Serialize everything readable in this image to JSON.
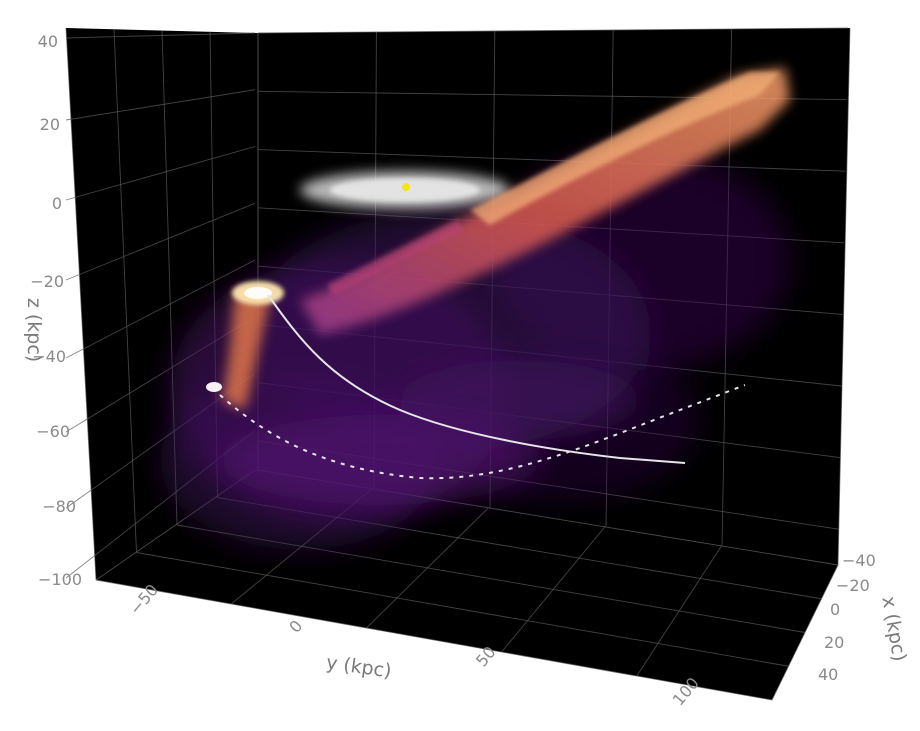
{
  "chart_data": {
    "type": "scatter",
    "projection": "3d",
    "axes": {
      "x": {
        "title": "x (kpc)",
        "ticks": [
          "−40",
          "−20",
          "0",
          "20",
          "40"
        ],
        "range": [
          -40,
          40
        ]
      },
      "y": {
        "title": "y (kpc)",
        "ticks": [
          "−50",
          "0",
          "50",
          "100"
        ],
        "range": [
          -60,
          110
        ]
      },
      "z": {
        "title": "z (kpc)",
        "ticks": [
          "40",
          "20",
          "0",
          "−20",
          "−40",
          "−60",
          "−80",
          "−100"
        ],
        "range": [
          -100,
          40
        ]
      }
    },
    "background": "#000000",
    "grid": true,
    "colormap": "inferno",
    "colors": {
      "disk": "#d9d9d9",
      "sun_marker": "#f2e51b",
      "stream_bright": "#ffe6b0",
      "stream_mid": "#e8764a",
      "stream_dim": "#6a1f7e",
      "orbit": "#e6e6e6"
    },
    "series": [
      {
        "kind": "density",
        "points": [
          [
            -10,
            0,
            0
          ],
          [
            10,
            0,
            0
          ],
          [
            0,
            -12,
            0
          ],
          [
            0,
            12,
            0
          ]
        ]
      },
      {
        "kind": "marker",
        "points": [
          [
            0,
            0,
            0
          ]
        ]
      },
      {
        "kind": "density",
        "points": [
          [
            0,
            100,
            30
          ],
          [
            0,
            75,
            15
          ],
          [
            0,
            50,
            0
          ],
          [
            0,
            30,
            -12
          ],
          [
            0,
            15,
            -20
          ],
          [
            0,
            5,
            -28
          ]
        ]
      },
      {
        "kind": "density",
        "points": [
          [
            0,
            -15,
            -10
          ],
          [
            0,
            -10,
            -30
          ],
          [
            0,
            -5,
            -48
          ]
        ]
      },
      {
        "kind": "density",
        "points": [
          [
            0,
            -20,
            -40
          ],
          [
            0,
            -10,
            -60
          ],
          [
            0,
            10,
            -70
          ],
          [
            0,
            40,
            -65
          ],
          [
            0,
            70,
            -50
          ],
          [
            0,
            90,
            -35
          ]
        ]
      },
      {
        "kind": "line",
        "style": "solid",
        "points": [
          [
            0,
            -15,
            -20
          ],
          [
            0,
            5,
            -45
          ],
          [
            0,
            40,
            -62
          ],
          [
            0,
            75,
            -70
          ],
          [
            0,
            95,
            -72
          ]
        ]
      },
      {
        "kind": "line",
        "style": "dashed",
        "points": [
          [
            0,
            -45,
            -50
          ],
          [
            0,
            -20,
            -65
          ],
          [
            0,
            15,
            -78
          ],
          [
            0,
            50,
            -70
          ],
          [
            0,
            80,
            -55
          ],
          [
            0,
            100,
            -45
          ]
        ]
      }
    ]
  }
}
